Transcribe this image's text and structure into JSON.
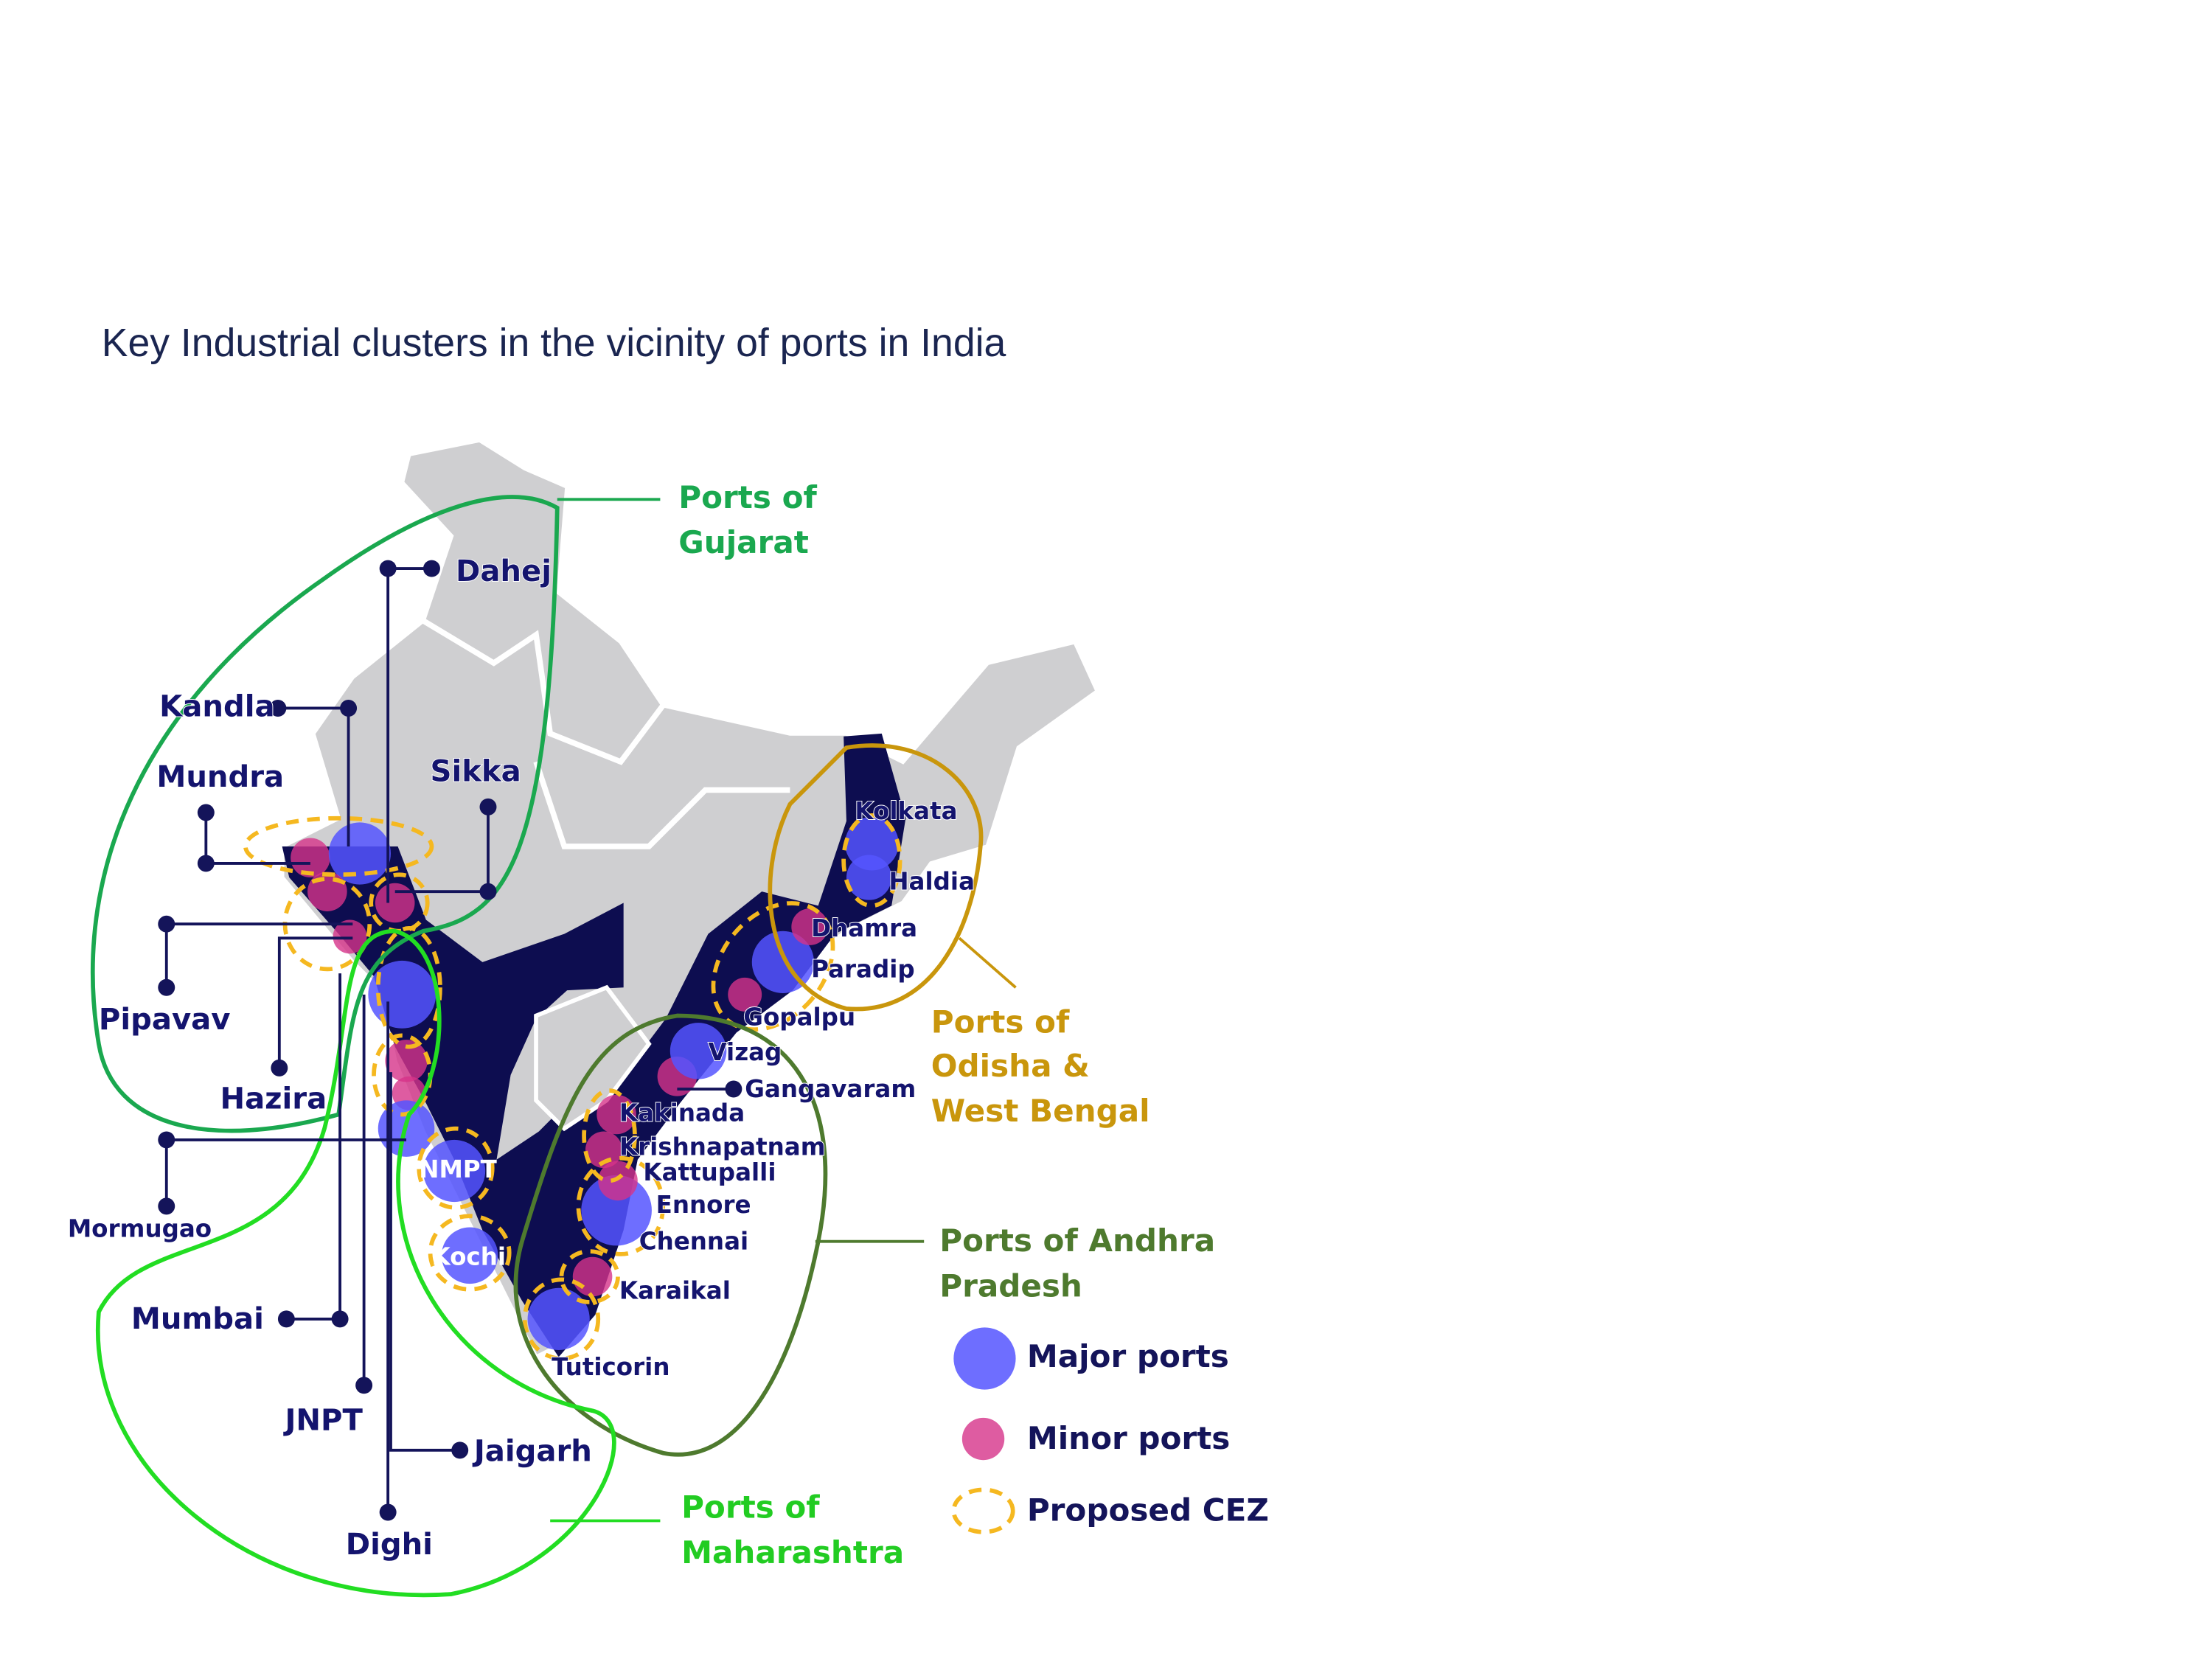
{
  "title": "Key Industrial clusters in the vicinity of ports in India",
  "ports": [
    "Dahej",
    "Kandla",
    "Mundra",
    "Sikka",
    "Pipavav",
    "Hazira",
    "Mormugao",
    "Mumbai",
    "JNPT",
    "Jaigarh",
    "Dighi",
    "NMPT",
    "Kochi",
    "Tuticorin",
    "Karaikal",
    "Chennai",
    "Ennore",
    "Kattupalli",
    "Krishnapatnam",
    "Kakinada",
    "Gangavaram",
    "Vizag",
    "Gopalpu",
    "Paradip",
    "Dhamra",
    "Haldia",
    "Kolkata"
  ],
  "regions": [
    {
      "lines": [
        "Ports of",
        "Gujarat"
      ]
    },
    {
      "lines": [
        "Ports of",
        "Odisha &",
        "West Bengal"
      ]
    },
    {
      "lines": [
        "Ports of Andhra",
        "Pradesh"
      ]
    },
    {
      "lines": [
        "Ports of",
        "Maharashtra"
      ]
    }
  ],
  "legend": [
    "Major ports",
    "Minor ports",
    "Proposed CEZ"
  ]
}
